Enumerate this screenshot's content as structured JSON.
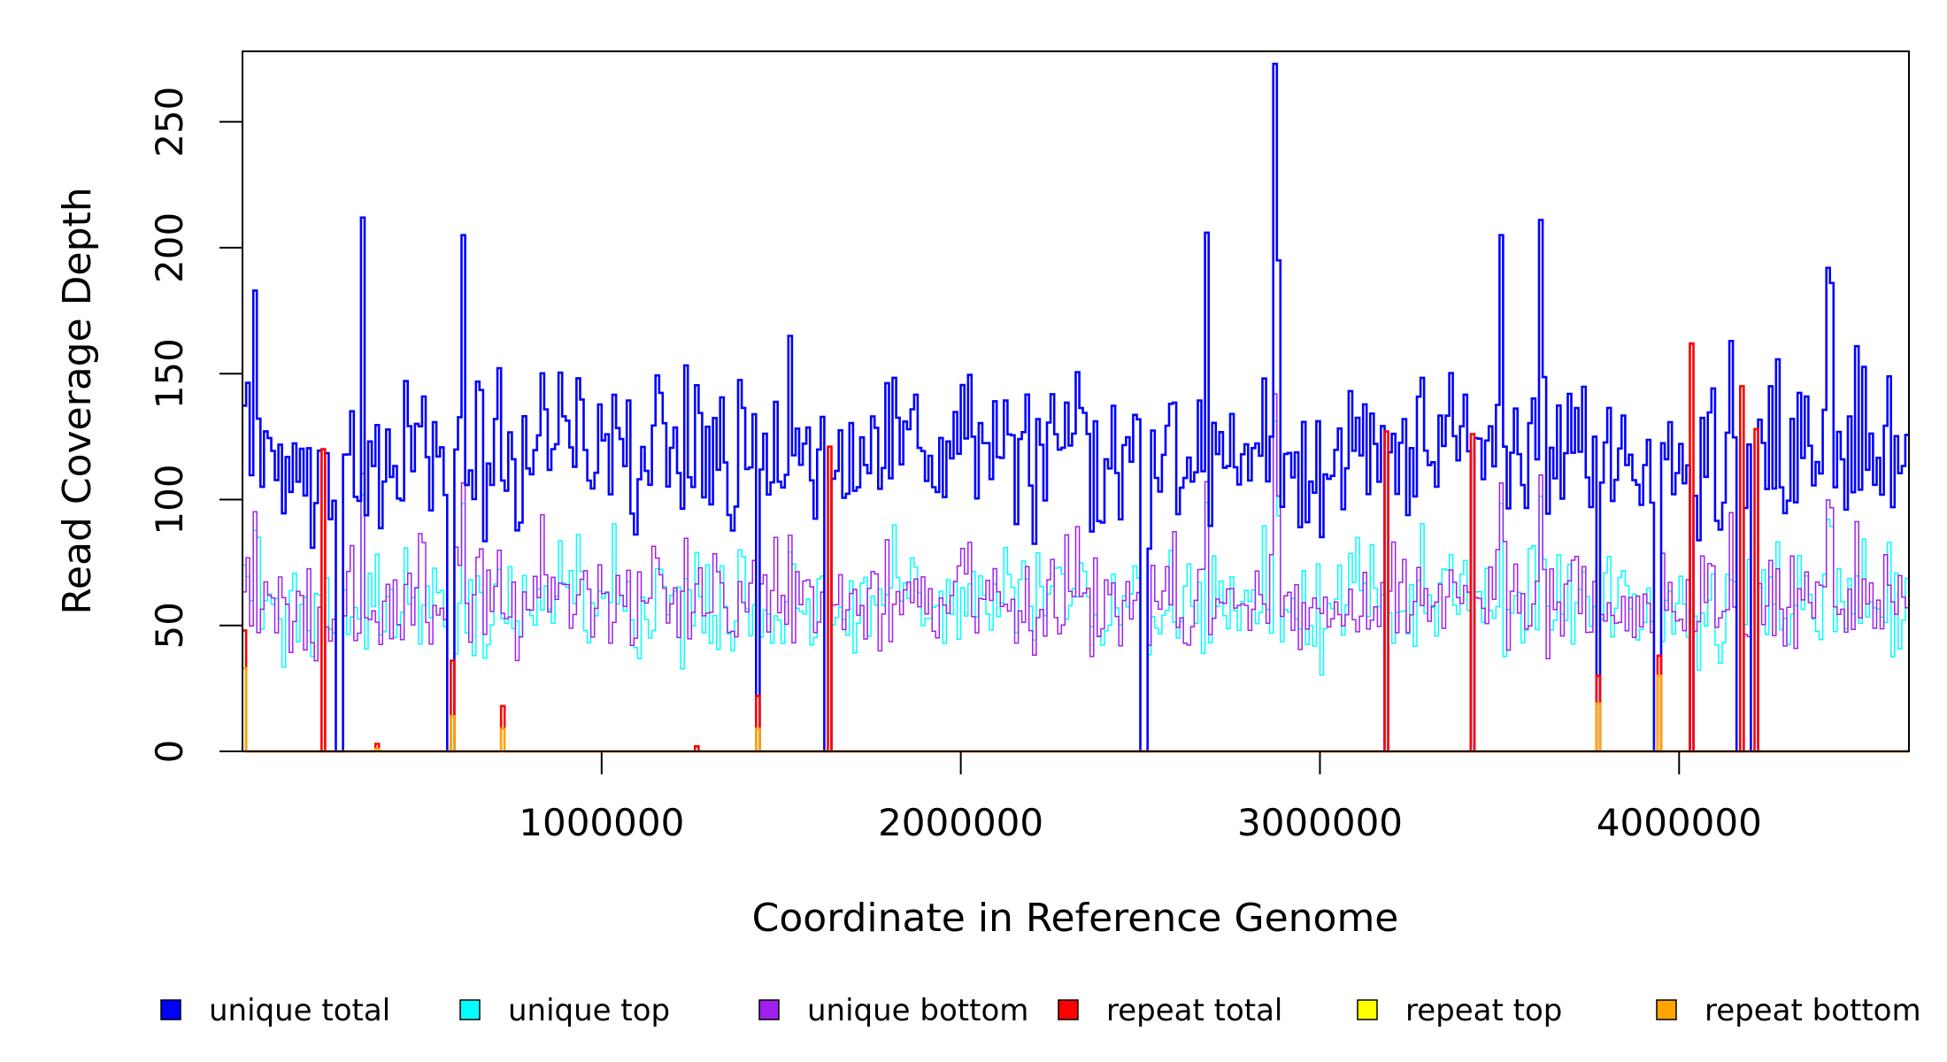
{
  "chart_data": {
    "type": "line",
    "title": "",
    "xlabel": "Coordinate in Reference Genome",
    "ylabel": "Read Coverage Depth",
    "xlim": [
      0,
      4640000
    ],
    "ylim": [
      0,
      278
    ],
    "x_ticks": [
      1000000,
      2000000,
      3000000,
      4000000
    ],
    "x_tick_labels": [
      "1000000",
      "2000000",
      "3000000",
      "4000000"
    ],
    "y_ticks": [
      0,
      50,
      100,
      150,
      200,
      250
    ],
    "y_tick_labels": [
      "0",
      "50",
      "100",
      "150",
      "200",
      "250"
    ],
    "grid": false,
    "legend_position": "bottom",
    "bin_width": 10000,
    "series_drawing_order": [
      "unique top",
      "unique bottom",
      "unique total",
      "repeat total",
      "repeat bottom",
      "repeat top"
    ],
    "legend": [
      {
        "name": "unique total",
        "color": "#0000ff"
      },
      {
        "name": "unique top",
        "color": "#00ffff"
      },
      {
        "name": "unique bottom",
        "color": "#a020f0"
      },
      {
        "name": "repeat total",
        "color": "#ff0000"
      },
      {
        "name": "repeat top",
        "color": "#ffff00"
      },
      {
        "name": "repeat bottom",
        "color": "#ffa500"
      }
    ],
    "dropouts": [
      {
        "start": 220000,
        "end": 230000
      },
      {
        "start": 265000,
        "end": 275000
      },
      {
        "start": 575000,
        "end": 585000
      },
      {
        "start": 1430000,
        "end": 1440000
      },
      {
        "start": 1625000,
        "end": 1635000
      },
      {
        "start": 2505000,
        "end": 2515000
      },
      {
        "start": 3180000,
        "end": 3190000
      },
      {
        "start": 3420000,
        "end": 3430000
      },
      {
        "start": 3770000,
        "end": 3780000
      },
      {
        "start": 3935000,
        "end": 3945000
      },
      {
        "start": 4030000,
        "end": 4040000
      },
      {
        "start": 4165000,
        "end": 4175000
      },
      {
        "start": 4205000,
        "end": 4215000
      }
    ],
    "peaks": [
      {
        "x": 30000,
        "y": 183
      },
      {
        "x": 330000,
        "y": 212
      },
      {
        "x": 615000,
        "y": 205
      },
      {
        "x": 1525000,
        "y": 165
      },
      {
        "x": 2680000,
        "y": 206
      },
      {
        "x": 2875000,
        "y": 273
      },
      {
        "x": 2885000,
        "y": 195
      },
      {
        "x": 3500000,
        "y": 205
      },
      {
        "x": 3610000,
        "y": 211
      },
      {
        "x": 4410000,
        "y": 192
      },
      {
        "x": 4420000,
        "y": 186
      }
    ],
    "repeat_total_spikes": [
      {
        "x": 5000,
        "y": 48
      },
      {
        "x": 225000,
        "y": 120
      },
      {
        "x": 370000,
        "y": 3
      },
      {
        "x": 580000,
        "y": 36
      },
      {
        "x": 725000,
        "y": 18
      },
      {
        "x": 1265000,
        "y": 2
      },
      {
        "x": 1435000,
        "y": 22
      },
      {
        "x": 1630000,
        "y": 121
      },
      {
        "x": 3185000,
        "y": 127
      },
      {
        "x": 3425000,
        "y": 126
      },
      {
        "x": 3775000,
        "y": 30
      },
      {
        "x": 3940000,
        "y": 38
      },
      {
        "x": 4035000,
        "y": 162
      },
      {
        "x": 4175000,
        "y": 145
      },
      {
        "x": 4210000,
        "y": 128
      }
    ],
    "repeat_bottom_spikes": [
      {
        "x": 5000,
        "y": 33
      },
      {
        "x": 370000,
        "y": 1
      },
      {
        "x": 580000,
        "y": 14
      },
      {
        "x": 725000,
        "y": 9
      },
      {
        "x": 1435000,
        "y": 9
      },
      {
        "x": 3775000,
        "y": 19
      },
      {
        "x": 3940000,
        "y": 30
      }
    ],
    "series": [
      {
        "name": "unique total",
        "color": "#0000ff",
        "base": 118,
        "spread": 22
      },
      {
        "name": "unique top",
        "color": "#00ffff",
        "base": 59,
        "spread": 11
      },
      {
        "name": "unique bottom",
        "color": "#a020f0",
        "base": 59,
        "spread": 11
      },
      {
        "name": "repeat total",
        "color": "#ff0000",
        "base": 0,
        "spread": 0
      },
      {
        "name": "repeat top",
        "color": "#ffff00",
        "base": 0,
        "spread": 0
      },
      {
        "name": "repeat bottom",
        "color": "#ffa500",
        "base": 0,
        "spread": 0
      }
    ]
  }
}
